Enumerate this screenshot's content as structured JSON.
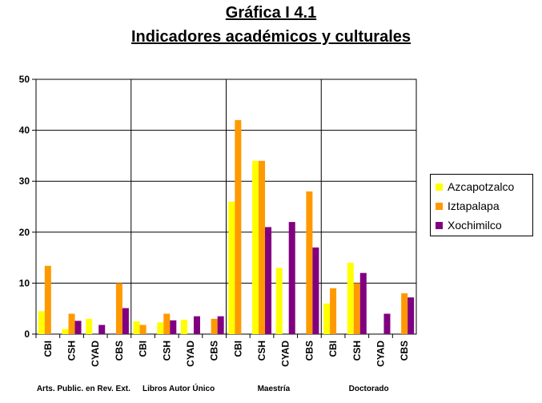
{
  "chart_data": {
    "type": "bar",
    "title": "Gráfica I 4.1",
    "subtitle": "Indicadores académicos y culturales",
    "ylim": [
      0,
      50
    ],
    "yticks": [
      0,
      10,
      20,
      30,
      40,
      50
    ],
    "grid": true,
    "legend_position": "right",
    "groups": [
      "Arts. Public. en Rev. Ext.",
      "Libros Autor Único",
      "Maestría",
      "Doctorado"
    ],
    "categories": [
      "CBI",
      "CSH",
      "CYAD",
      "CBS"
    ],
    "series": [
      {
        "name": "Azcapotzalco",
        "color": "#ffff00",
        "values": [
          [
            4.5,
            1,
            3,
            0
          ],
          [
            2.5,
            2.3,
            2.8,
            0
          ],
          [
            26,
            34,
            13,
            0
          ],
          [
            6,
            14,
            0,
            0
          ]
        ]
      },
      {
        "name": "Iztapalapa",
        "color": "#ff9900",
        "values": [
          [
            13.4,
            4,
            0,
            10
          ],
          [
            1.8,
            4,
            0,
            3
          ],
          [
            42,
            34,
            0,
            28
          ],
          [
            9,
            10,
            0,
            8
          ]
        ]
      },
      {
        "name": "Xochimilco",
        "color": "#800080",
        "values": [
          [
            0,
            2.6,
            1.8,
            5.1
          ],
          [
            0,
            2.7,
            3.5,
            3.5
          ],
          [
            0,
            21,
            22,
            17
          ],
          [
            0,
            12,
            4,
            7.2
          ]
        ]
      }
    ]
  }
}
